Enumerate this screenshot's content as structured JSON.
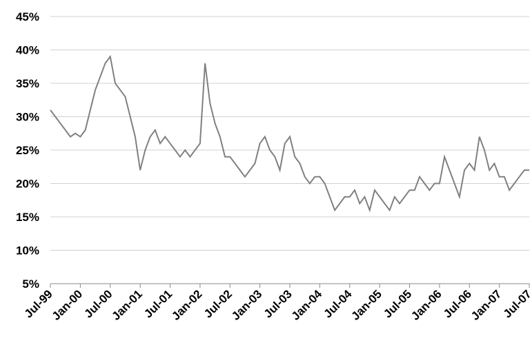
{
  "chart_data": {
    "type": "line",
    "color": "#808080",
    "grid": true,
    "ylim": [
      5,
      45
    ],
    "yticks": [
      {
        "value": 5,
        "label": "5%"
      },
      {
        "value": 10,
        "label": "10%"
      },
      {
        "value": 15,
        "label": "15%"
      },
      {
        "value": 20,
        "label": "20%"
      },
      {
        "value": 25,
        "label": "25%"
      },
      {
        "value": 30,
        "label": "30%"
      },
      {
        "value": 35,
        "label": "35%"
      },
      {
        "value": 40,
        "label": "40%"
      },
      {
        "value": 45,
        "label": "45%"
      }
    ],
    "categories": [
      "Jul-99",
      null,
      null,
      null,
      null,
      null,
      "Jan-00",
      null,
      null,
      null,
      null,
      null,
      "Jul-00",
      null,
      null,
      null,
      null,
      null,
      "Jan-01",
      null,
      null,
      null,
      null,
      null,
      "Jul-01",
      null,
      null,
      null,
      null,
      null,
      "Jan-02",
      null,
      null,
      null,
      null,
      null,
      "Jul-02",
      null,
      null,
      null,
      null,
      null,
      "Jan-03",
      null,
      null,
      null,
      null,
      null,
      "Jul-03",
      null,
      null,
      null,
      null,
      null,
      "Jan-04",
      null,
      null,
      null,
      null,
      null,
      "Jul-04",
      null,
      null,
      null,
      null,
      null,
      "Jan-05",
      null,
      null,
      null,
      null,
      null,
      "Jul-05",
      null,
      null,
      null,
      null,
      null,
      "Jan-06",
      null,
      null,
      null,
      null,
      null,
      "Jul-06",
      null,
      null,
      null,
      null,
      null,
      "Jan-07",
      null,
      null,
      null,
      null,
      null,
      "Jul-07"
    ],
    "values": [
      31,
      30,
      29,
      28,
      27,
      27.5,
      27,
      28,
      31,
      34,
      36,
      38,
      39,
      35,
      34,
      33,
      30,
      27,
      22,
      25,
      27,
      28,
      26,
      27,
      26,
      25,
      24,
      25,
      24,
      25,
      26,
      38,
      32,
      29,
      27,
      24,
      24,
      23,
      22,
      21,
      22,
      23,
      26,
      27,
      25,
      24,
      22,
      26,
      27,
      24,
      23,
      21,
      20,
      21,
      21,
      20,
      18,
      16,
      17,
      18,
      18,
      19,
      17,
      18,
      16,
      19,
      18,
      17,
      16,
      18,
      17,
      18,
      19,
      19,
      21,
      20,
      19,
      20,
      20,
      24,
      22,
      20,
      18,
      22,
      23,
      22,
      27,
      25,
      22,
      23,
      21,
      21,
      19,
      20,
      21,
      22,
      22
    ]
  }
}
